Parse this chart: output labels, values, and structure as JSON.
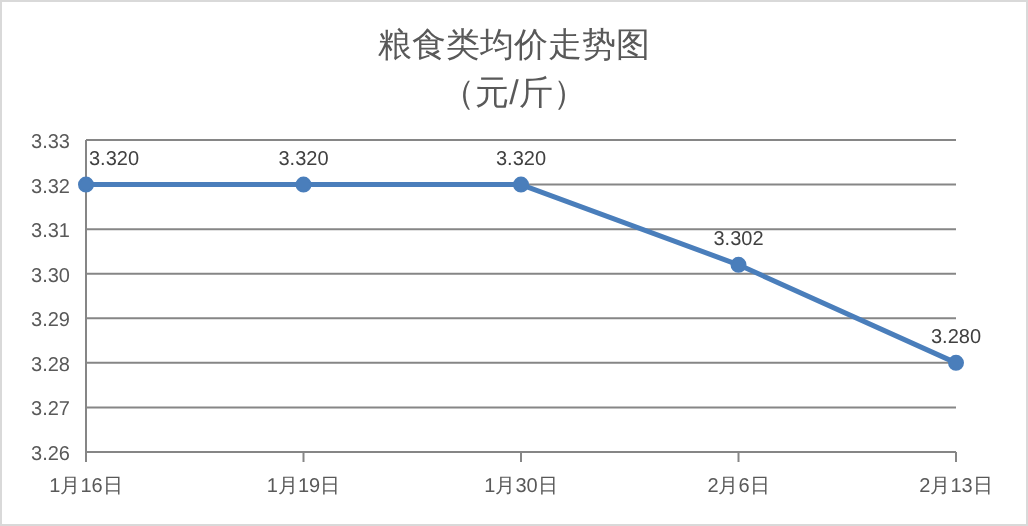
{
  "chart_data": {
    "type": "line",
    "title": "粮食类均价走势图",
    "subtitle": "（元/斤）",
    "categories": [
      "1月16日",
      "1月19日",
      "1月30日",
      "2月6日",
      "2月13日"
    ],
    "series": [
      {
        "color": "#4a7ebb",
        "values": [
          3.32,
          3.32,
          3.32,
          3.302,
          3.28
        ],
        "value_labels": [
          "3.320",
          "3.320",
          "3.320",
          "3.302",
          "3.280"
        ]
      }
    ],
    "ylim": [
      3.26,
      3.33
    ],
    "yticks": [
      {
        "value": 3.26,
        "label": "3.26"
      },
      {
        "value": 3.27,
        "label": "3.27"
      },
      {
        "value": 3.28,
        "label": "3.28"
      },
      {
        "value": 3.29,
        "label": "3.29"
      },
      {
        "value": 3.3,
        "label": "3.30"
      },
      {
        "value": 3.31,
        "label": "3.31"
      },
      {
        "value": 3.32,
        "label": "3.32"
      },
      {
        "value": 3.33,
        "label": "3.33"
      }
    ],
    "grid": "y",
    "marker": "circle",
    "line_style": "solid"
  }
}
